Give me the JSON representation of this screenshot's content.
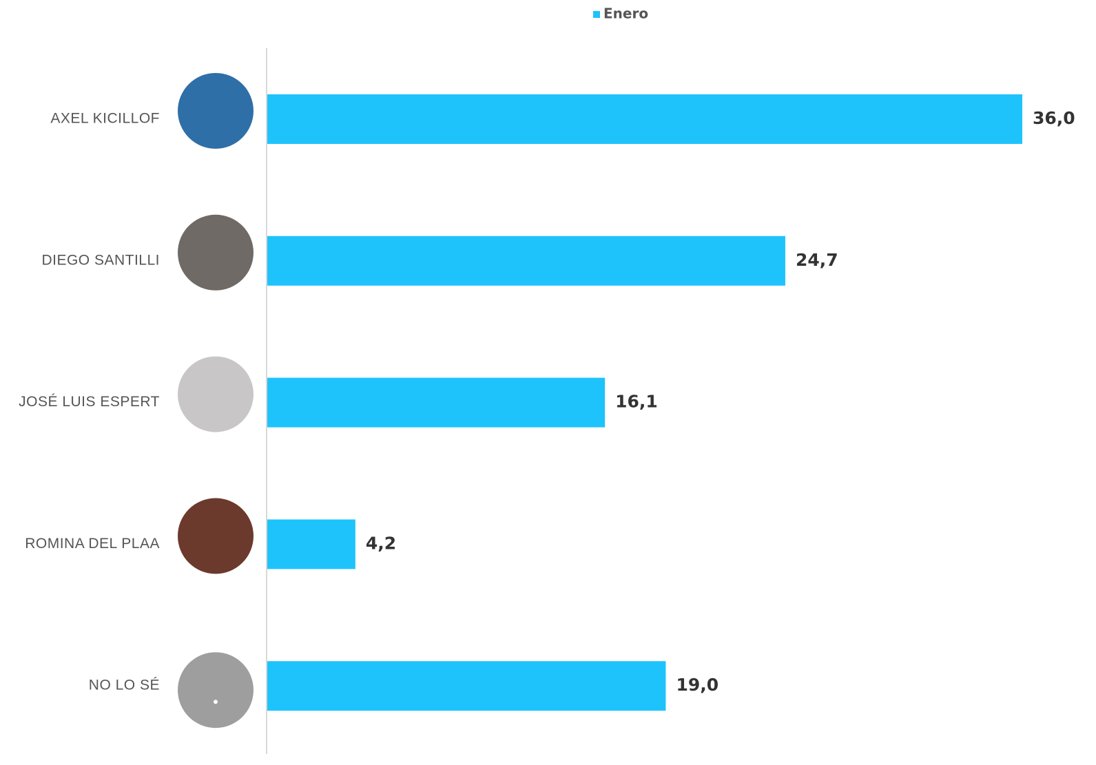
{
  "chart_data": {
    "type": "barh",
    "legend": "Enero",
    "color": "#1fc3fc",
    "categories": [
      "AXEL KICILLOF",
      "DIEGO SANTILLI",
      "JOSÉ LUIS ESPERT",
      "ROMINA DEL PLAA",
      "NO LO SÉ"
    ],
    "values": [
      36.0,
      24.7,
      16.1,
      4.2,
      19.0
    ],
    "value_labels": [
      "36,0",
      "24,7",
      "16,1",
      "4,2",
      "19,0"
    ]
  }
}
